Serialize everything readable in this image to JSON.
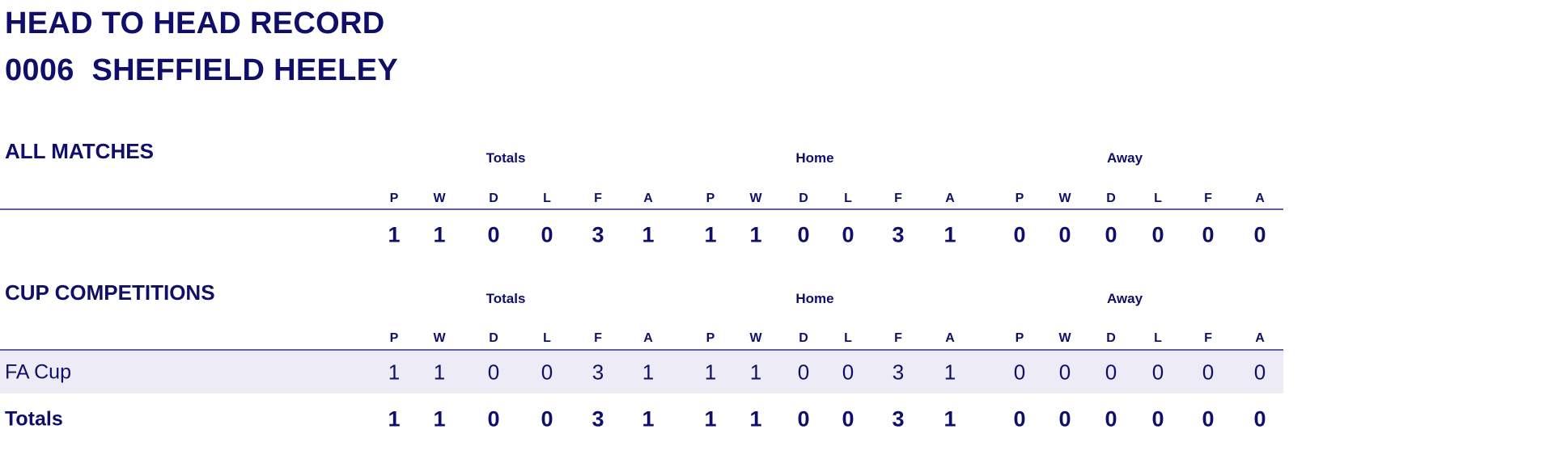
{
  "header": {
    "title": "HEAD TO HEAD RECORD",
    "subtitle": "0006  SHEFFIELD HEELEY"
  },
  "columns": [
    "P",
    "W",
    "D",
    "L",
    "F",
    "A",
    "P",
    "W",
    "D",
    "L",
    "F",
    "A",
    "P",
    "W",
    "D",
    "L",
    "F",
    "A"
  ],
  "groups": [
    "Totals",
    "Home",
    "Away"
  ],
  "all_matches": {
    "heading": "ALL MATCHES",
    "values": [
      "1",
      "1",
      "0",
      "0",
      "3",
      "1",
      "1",
      "1",
      "0",
      "0",
      "3",
      "1",
      "0",
      "0",
      "0",
      "0",
      "0",
      "0"
    ]
  },
  "cup_competitions": {
    "heading": "CUP COMPETITIONS",
    "rows": [
      {
        "label": "FA Cup",
        "values": [
          "1",
          "1",
          "0",
          "0",
          "3",
          "1",
          "1",
          "1",
          "0",
          "0",
          "3",
          "1",
          "0",
          "0",
          "0",
          "0",
          "0",
          "0"
        ]
      }
    ],
    "totals": {
      "label": "Totals",
      "values": [
        "1",
        "1",
        "0",
        "0",
        "3",
        "1",
        "1",
        "1",
        "0",
        "0",
        "3",
        "1",
        "0",
        "0",
        "0",
        "0",
        "0",
        "0"
      ]
    }
  },
  "colors": {
    "text": "#0f0f6a",
    "rule": "#5f5f9e",
    "row_band": "#ecebf6"
  }
}
